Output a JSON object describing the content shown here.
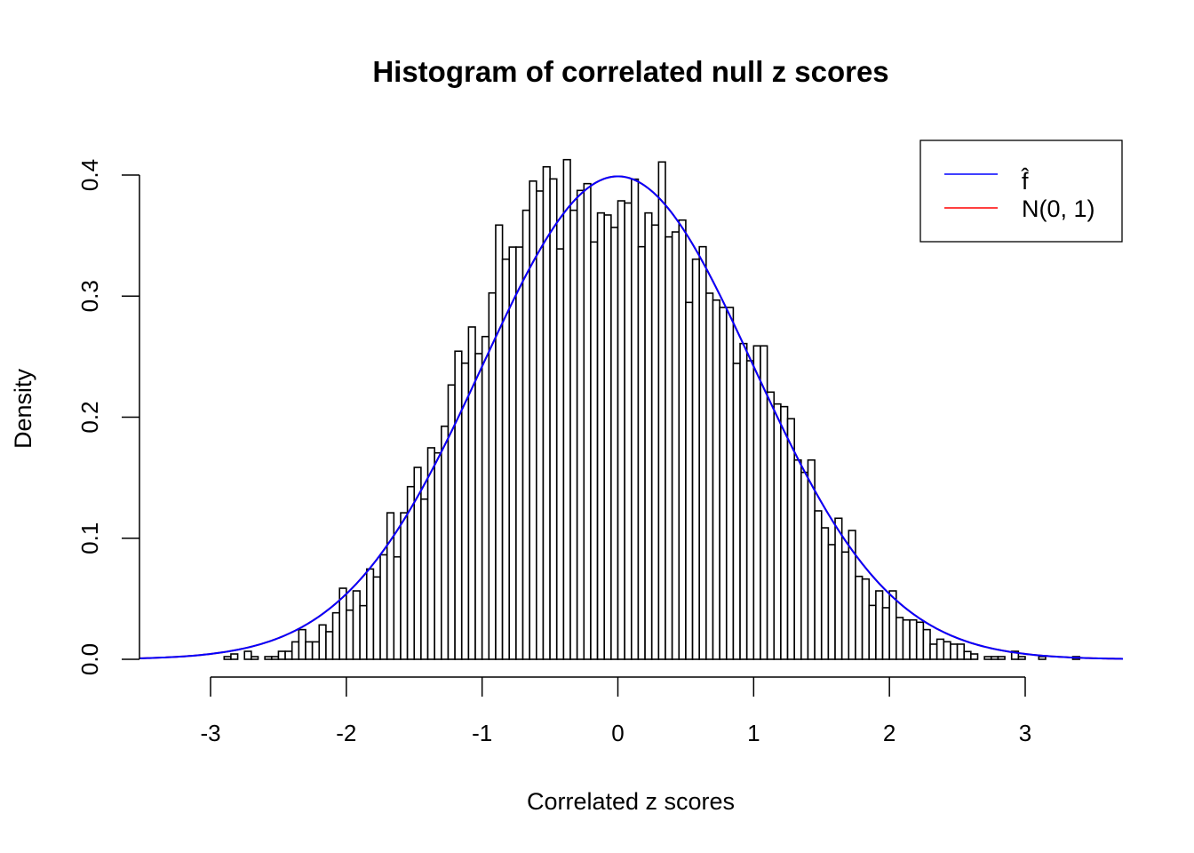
{
  "chart_data": {
    "type": "bar",
    "subtype": "histogram",
    "title": "Histogram of correlated null z scores",
    "xlabel": "Correlated z scores",
    "ylabel": "Density",
    "xlim": [
      -3.52,
      3.72
    ],
    "ylim": [
      0,
      0.4
    ],
    "x_ticks": [
      "-3",
      "-2",
      "-1",
      "0",
      "1",
      "2",
      "3"
    ],
    "y_ticks": [
      "0.0",
      "0.1",
      "0.2",
      "0.3",
      "0.4"
    ],
    "grid": false,
    "bin_start": -3.25,
    "bin_width": 0.05,
    "values": [
      0,
      0,
      0,
      0,
      0,
      0,
      0,
      0.0022,
      0.0044,
      0,
      0.0066,
      0.0022,
      0,
      0.0022,
      0.0022,
      0.0066,
      0.0066,
      0.0144,
      0.0245,
      0.0144,
      0.0144,
      0.0284,
      0.0228,
      0.0384,
      0.0587,
      0.0406,
      0.0565,
      0.0443,
      0.0746,
      0.068,
      0.0863,
      0.121,
      0.0846,
      0.121,
      0.1426,
      0.1585,
      0.1323,
      0.1747,
      0.1705,
      0.1925,
      0.2266,
      0.2545,
      0.2446,
      0.2745,
      0.2525,
      0.2666,
      0.3026,
      0.3587,
      0.3305,
      0.3405,
      0.3405,
      0.3709,
      0.395,
      0.3868,
      0.4068,
      0.3968,
      0.339,
      0.4127,
      0.3709,
      0.3873,
      0.3929,
      0.3447,
      0.3687,
      0.367,
      0.3567,
      0.3787,
      0.3769,
      0.3966,
      0.3408,
      0.3687,
      0.3587,
      0.4108,
      0.3489,
      0.353,
      0.3628,
      0.2948,
      0.3305,
      0.3408,
      0.3024,
      0.2967,
      0.2906,
      0.2906,
      0.2444,
      0.2608,
      0.2466,
      0.2589,
      0.2589,
      0.2207,
      0.2109,
      0.2087,
      0.1987,
      0.1646,
      0.1544,
      0.1646,
      0.1226,
      0.1086,
      0.0947,
      0.1165,
      0.0886,
      0.1064,
      0.0685,
      0.0663,
      0.0445,
      0.0565,
      0.0426,
      0.0565,
      0.0345,
      0.0325,
      0.0325,
      0.0306,
      0.0245,
      0.0125,
      0.0166,
      0.0145,
      0.0125,
      0.0125,
      0.0064,
      0.0044,
      0,
      0.0022,
      0.0022,
      0.0022,
      0,
      0.0066,
      0.0022,
      0,
      0,
      0.0022,
      0,
      0,
      0,
      0,
      0.0022,
      0
    ],
    "bar_fill": "#ffffff",
    "bar_stroke": "#000000",
    "curves": [
      {
        "name": "N(0, 1)",
        "type": "normal-density",
        "mean": 0,
        "sd": 1,
        "color": "#ff0000"
      },
      {
        "name": "f̂",
        "type": "normal-density",
        "mean": 0,
        "sd": 1,
        "color": "#0000ff"
      }
    ],
    "legend": {
      "position": "top-right",
      "entries": [
        {
          "label": "f̂",
          "color": "#0000ff"
        },
        {
          "label": "N(0, 1)",
          "color": "#ff0000"
        }
      ]
    }
  }
}
